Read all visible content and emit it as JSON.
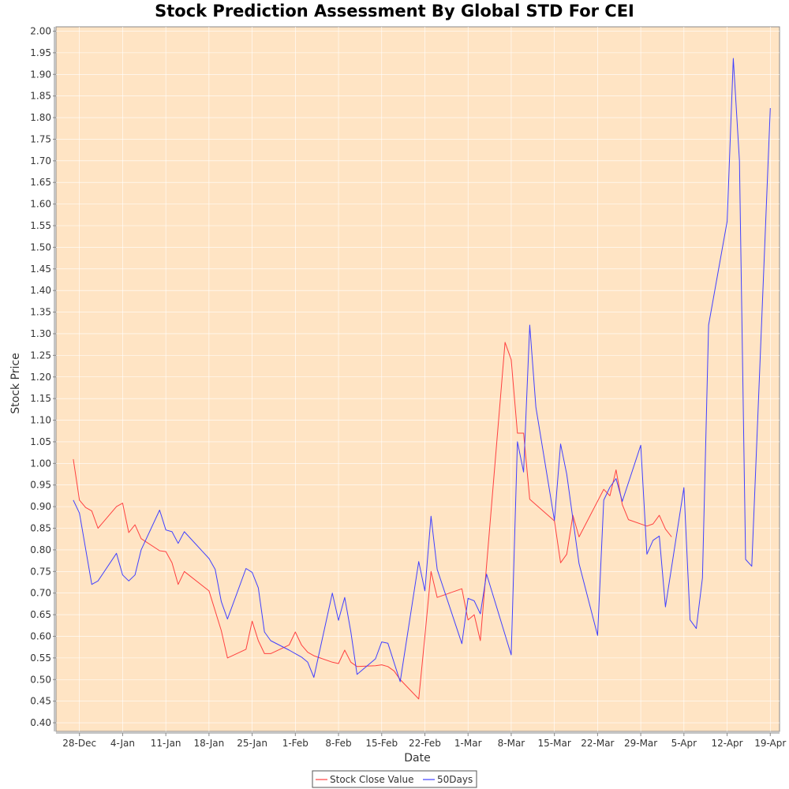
{
  "chart_data": {
    "type": "line",
    "title": "Stock Prediction Assessment By Global STD For CEI",
    "xlabel": "Date",
    "ylabel": "Stock Price",
    "ylim": [
      0.38,
      2.01
    ],
    "xlim": [
      -3.8,
      113.5
    ],
    "y_ticks": [
      0.4,
      0.45,
      0.5,
      0.55,
      0.6,
      0.65,
      0.7,
      0.75,
      0.8,
      0.85,
      0.9,
      0.95,
      1.0,
      1.05,
      1.1,
      1.15,
      1.2,
      1.25,
      1.3,
      1.35,
      1.4,
      1.45,
      1.5,
      1.55,
      1.6,
      1.65,
      1.7,
      1.75,
      1.8,
      1.85,
      1.9,
      1.95,
      2.0
    ],
    "x_ticks": [
      {
        "label": "28-Dec",
        "day": 0
      },
      {
        "label": "4-Jan",
        "day": 7
      },
      {
        "label": "11-Jan",
        "day": 14
      },
      {
        "label": "18-Jan",
        "day": 21
      },
      {
        "label": "25-Jan",
        "day": 28
      },
      {
        "label": "1-Feb",
        "day": 35
      },
      {
        "label": "8-Feb",
        "day": 42
      },
      {
        "label": "15-Feb",
        "day": 49
      },
      {
        "label": "22-Feb",
        "day": 56
      },
      {
        "label": "1-Mar",
        "day": 63
      },
      {
        "label": "8-Mar",
        "day": 70
      },
      {
        "label": "15-Mar",
        "day": 77
      },
      {
        "label": "22-Mar",
        "day": 84
      },
      {
        "label": "29-Mar",
        "day": 91
      },
      {
        "label": "5-Apr",
        "day": 98
      },
      {
        "label": "12-Apr",
        "day": 105
      },
      {
        "label": "19-Apr",
        "day": 112
      }
    ],
    "grid": true,
    "plot_background": "#ffe4c4",
    "legend_position": "bottom-center",
    "series": [
      {
        "name": "Stock Close Value",
        "color": "#ff4040",
        "points": [
          [
            -1,
            1.01
          ],
          [
            0,
            0.915
          ],
          [
            1,
            0.898
          ],
          [
            2,
            0.89
          ],
          [
            3,
            0.85
          ],
          [
            6,
            0.9
          ],
          [
            7,
            0.908
          ],
          [
            8,
            0.84
          ],
          [
            9,
            0.858
          ],
          [
            10,
            0.826
          ],
          [
            13,
            0.798
          ],
          [
            14,
            0.796
          ],
          [
            15,
            0.77
          ],
          [
            16,
            0.72
          ],
          [
            17,
            0.75
          ],
          [
            21,
            0.705
          ],
          [
            23,
            0.613
          ],
          [
            24,
            0.55
          ],
          [
            27,
            0.57
          ],
          [
            28,
            0.635
          ],
          [
            29,
            0.59
          ],
          [
            30,
            0.56
          ],
          [
            31,
            0.56
          ],
          [
            34,
            0.58
          ],
          [
            35,
            0.61
          ],
          [
            36,
            0.58
          ],
          [
            37,
            0.563
          ],
          [
            38,
            0.555
          ],
          [
            41,
            0.54
          ],
          [
            42,
            0.537
          ],
          [
            43,
            0.568
          ],
          [
            44,
            0.54
          ],
          [
            45,
            0.53
          ],
          [
            48,
            0.532
          ],
          [
            49,
            0.534
          ],
          [
            50,
            0.53
          ],
          [
            51,
            0.52
          ],
          [
            52,
            0.5
          ],
          [
            55,
            0.455
          ],
          [
            56,
            0.6
          ],
          [
            57,
            0.75
          ],
          [
            58,
            0.69
          ],
          [
            62,
            0.71
          ],
          [
            63,
            0.638
          ],
          [
            64,
            0.65
          ],
          [
            65,
            0.59
          ],
          [
            69,
            1.28
          ],
          [
            70,
            1.24
          ],
          [
            71,
            1.07
          ],
          [
            72,
            1.07
          ],
          [
            73,
            0.917
          ],
          [
            77,
            0.867
          ],
          [
            78,
            0.77
          ],
          [
            79,
            0.79
          ],
          [
            80,
            0.88
          ],
          [
            81,
            0.83
          ],
          [
            85,
            0.94
          ],
          [
            86,
            0.925
          ],
          [
            87,
            0.985
          ],
          [
            88,
            0.905
          ],
          [
            89,
            0.87
          ],
          [
            92,
            0.855
          ],
          [
            93,
            0.86
          ],
          [
            94,
            0.88
          ],
          [
            95,
            0.848
          ],
          [
            96,
            0.83
          ]
        ]
      },
      {
        "name": "50Days",
        "color": "#4040ff",
        "points": [
          [
            -1,
            0.915
          ],
          [
            0,
            0.885
          ],
          [
            2,
            0.72
          ],
          [
            3,
            0.728
          ],
          [
            6,
            0.792
          ],
          [
            7,
            0.742
          ],
          [
            8,
            0.728
          ],
          [
            9,
            0.742
          ],
          [
            10,
            0.8
          ],
          [
            13,
            0.892
          ],
          [
            14,
            0.846
          ],
          [
            15,
            0.842
          ],
          [
            16,
            0.815
          ],
          [
            17,
            0.842
          ],
          [
            21,
            0.78
          ],
          [
            22,
            0.755
          ],
          [
            23,
            0.68
          ],
          [
            24,
            0.64
          ],
          [
            27,
            0.757
          ],
          [
            28,
            0.748
          ],
          [
            29,
            0.712
          ],
          [
            30,
            0.61
          ],
          [
            31,
            0.59
          ],
          [
            34,
            0.568
          ],
          [
            35,
            0.56
          ],
          [
            36,
            0.552
          ],
          [
            37,
            0.54
          ],
          [
            38,
            0.505
          ],
          [
            41,
            0.7
          ],
          [
            42,
            0.637
          ],
          [
            43,
            0.69
          ],
          [
            44,
            0.61
          ],
          [
            45,
            0.512
          ],
          [
            48,
            0.548
          ],
          [
            49,
            0.587
          ],
          [
            50,
            0.584
          ],
          [
            52,
            0.495
          ],
          [
            55,
            0.773
          ],
          [
            56,
            0.705
          ],
          [
            57,
            0.878
          ],
          [
            58,
            0.755
          ],
          [
            62,
            0.583
          ],
          [
            63,
            0.688
          ],
          [
            64,
            0.682
          ],
          [
            65,
            0.652
          ],
          [
            66,
            0.744
          ],
          [
            70,
            0.557
          ],
          [
            71,
            1.05
          ],
          [
            72,
            0.98
          ],
          [
            73,
            1.32
          ],
          [
            74,
            1.13
          ],
          [
            77,
            0.868
          ],
          [
            78,
            1.045
          ],
          [
            79,
            0.975
          ],
          [
            81,
            0.768
          ],
          [
            84,
            0.602
          ],
          [
            85,
            0.915
          ],
          [
            86,
            0.945
          ],
          [
            87,
            0.965
          ],
          [
            88,
            0.912
          ],
          [
            91,
            1.042
          ],
          [
            92,
            0.79
          ],
          [
            93,
            0.822
          ],
          [
            94,
            0.832
          ],
          [
            95,
            0.668
          ],
          [
            98,
            0.944
          ],
          [
            99,
            0.638
          ],
          [
            100,
            0.618
          ],
          [
            101,
            0.735
          ],
          [
            102,
            1.32
          ],
          [
            105,
            1.56
          ],
          [
            106,
            1.937
          ],
          [
            107,
            1.7
          ],
          [
            108,
            0.778
          ],
          [
            109,
            0.762
          ],
          [
            112,
            1.822
          ]
        ]
      }
    ]
  }
}
